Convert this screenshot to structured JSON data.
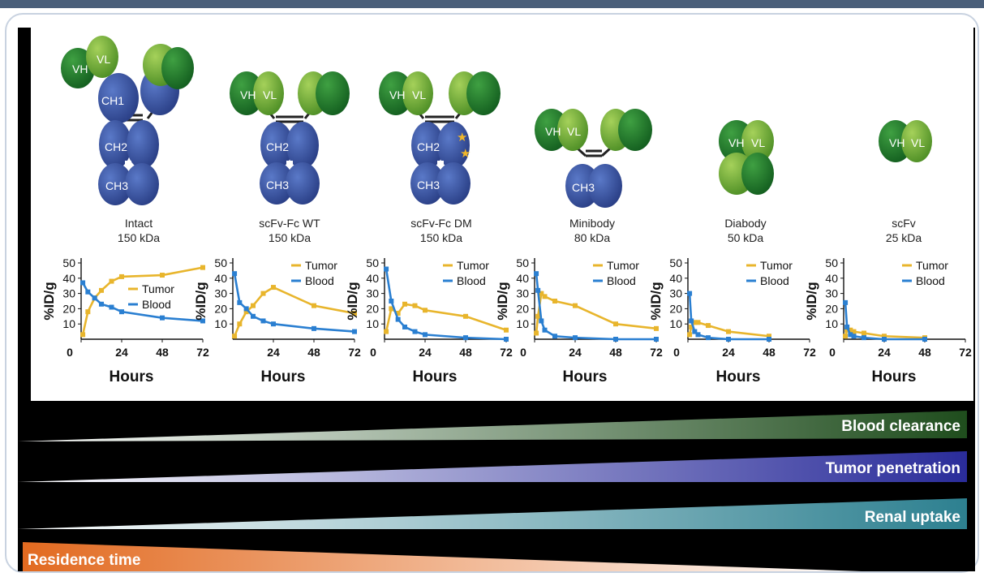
{
  "gradient_bars": [
    {
      "label": "Blood clearance",
      "color": "#1f4d1d"
    },
    {
      "label": "Tumor penetration",
      "color": "#2a2c9a"
    },
    {
      "label": "Renal uptake",
      "color": "#2d8090"
    },
    {
      "label": "Residence time",
      "color": "#e26a20"
    }
  ],
  "panels": [
    {
      "name": "Intact",
      "size": "150 kDa",
      "domains": [
        "VH",
        "VL",
        "CH1",
        "CH2",
        "CH3"
      ],
      "ylabel": "%ID/g",
      "xlabel": "Hours",
      "yticks": [
        "50",
        "40",
        "30",
        "20",
        "10"
      ],
      "xticks": [
        "0",
        "24",
        "48",
        "72"
      ],
      "legend": [
        "Tumor",
        "Blood"
      ],
      "legend_pos": "middle-right"
    },
    {
      "name": "scFv-Fc WT",
      "size": "150 kDa",
      "domains": [
        "VH",
        "VL",
        "CH2",
        "CH3"
      ],
      "ylabel": "%ID/g",
      "xlabel": "Hours",
      "yticks": [
        "50",
        "40",
        "30",
        "20",
        "10"
      ],
      "xticks": [
        "24",
        "48",
        "72"
      ],
      "legend": [
        "Tumor",
        "Blood"
      ],
      "legend_pos": "top-right"
    },
    {
      "name": "scFv-Fc DM",
      "size": "150 kDa",
      "domains": [
        "VH",
        "VL",
        "CH2",
        "CH3"
      ],
      "ylabel": "%ID/g",
      "xlabel": "Hours",
      "yticks": [
        "50",
        "40",
        "30",
        "20",
        "10"
      ],
      "xticks": [
        "0",
        "24",
        "48",
        "72"
      ],
      "legend": [
        "Tumor",
        "Blood"
      ],
      "legend_pos": "top-right"
    },
    {
      "name": "Minibody",
      "size": "80 kDa",
      "domains": [
        "VH",
        "VL",
        "CH3"
      ],
      "ylabel": "%ID/g",
      "xlabel": "Hours",
      "yticks": [
        "50",
        "40",
        "30",
        "20",
        "10"
      ],
      "xticks": [
        "0",
        "24",
        "48",
        "72"
      ],
      "legend": [
        "Tumor",
        "Blood"
      ],
      "legend_pos": "top-right"
    },
    {
      "name": "Diabody",
      "size": "50 kDa",
      "domains": [
        "VH",
        "VL"
      ],
      "ylabel": "%ID/g",
      "xlabel": "Hours",
      "yticks": [
        "50",
        "40",
        "30",
        "20",
        "10"
      ],
      "xticks": [
        "0",
        "24",
        "48",
        "72"
      ],
      "legend": [
        "Tumor",
        "Blood"
      ],
      "legend_pos": "top-right"
    },
    {
      "name": "scFv",
      "size": "25 kDa",
      "domains": [
        "VH",
        "VL"
      ],
      "ylabel": "%ID/g",
      "xlabel": "Hours",
      "yticks": [
        "50",
        "40",
        "30",
        "20",
        "10"
      ],
      "xticks": [
        "0",
        "24",
        "48",
        "72"
      ],
      "legend": [
        "Tumor",
        "Blood"
      ],
      "legend_pos": "top-right"
    }
  ],
  "chart_data": [
    {
      "type": "line",
      "title": "Intact",
      "ylabel": "%ID/g",
      "xlabel": "Hours",
      "ylim": [
        0,
        50
      ],
      "xlim": [
        0,
        72
      ],
      "series": [
        {
          "name": "Tumor",
          "color": "#e8b52c",
          "x": [
            1,
            4,
            8,
            12,
            18,
            24,
            48,
            72
          ],
          "y": [
            3,
            18,
            27,
            32,
            38,
            41,
            42,
            47
          ]
        },
        {
          "name": "Blood",
          "color": "#2a7fd1",
          "x": [
            1,
            4,
            8,
            12,
            18,
            24,
            48,
            72
          ],
          "y": [
            37,
            31,
            27,
            23,
            21,
            18,
            14,
            12
          ]
        }
      ]
    },
    {
      "type": "line",
      "title": "scFv-Fc WT",
      "ylabel": "%ID/g",
      "xlabel": "Hours",
      "ylim": [
        0,
        50
      ],
      "xlim": [
        0,
        72
      ],
      "series": [
        {
          "name": "Tumor",
          "color": "#e8b52c",
          "x": [
            1,
            4,
            8,
            12,
            18,
            24,
            48,
            72
          ],
          "y": [
            2,
            10,
            18,
            22,
            30,
            34,
            22,
            17
          ]
        },
        {
          "name": "Blood",
          "color": "#2a7fd1",
          "x": [
            1,
            4,
            8,
            12,
            18,
            24,
            48,
            72
          ],
          "y": [
            43,
            24,
            20,
            15,
            12,
            10,
            7,
            5
          ]
        }
      ]
    },
    {
      "type": "line",
      "title": "scFv-Fc DM",
      "ylabel": "%ID/g",
      "xlabel": "Hours",
      "ylim": [
        0,
        50
      ],
      "xlim": [
        0,
        72
      ],
      "series": [
        {
          "name": "Tumor",
          "color": "#e8b52c",
          "x": [
            1,
            4,
            8,
            12,
            18,
            24,
            48,
            72
          ],
          "y": [
            5,
            20,
            17,
            23,
            22,
            19,
            15,
            6
          ]
        },
        {
          "name": "Blood",
          "color": "#2a7fd1",
          "x": [
            1,
            4,
            8,
            12,
            18,
            24,
            48,
            72
          ],
          "y": [
            46,
            25,
            13,
            8,
            5,
            3,
            1,
            0
          ]
        }
      ]
    },
    {
      "type": "line",
      "title": "Minibody",
      "ylabel": "%ID/g",
      "xlabel": "Hours",
      "ylim": [
        0,
        50
      ],
      "xlim": [
        0,
        72
      ],
      "series": [
        {
          "name": "Tumor",
          "color": "#e8b52c",
          "x": [
            1,
            2,
            4,
            6,
            12,
            24,
            48,
            72
          ],
          "y": [
            4,
            15,
            30,
            28,
            25,
            22,
            10,
            7
          ]
        },
        {
          "name": "Blood",
          "color": "#2a7fd1",
          "x": [
            1,
            2,
            4,
            6,
            12,
            24,
            48,
            72
          ],
          "y": [
            43,
            32,
            12,
            6,
            2,
            1,
            0,
            0
          ]
        }
      ]
    },
    {
      "type": "line",
      "title": "Diabody",
      "ylabel": "%ID/g",
      "xlabel": "Hours",
      "ylim": [
        0,
        50
      ],
      "xlim": [
        0,
        72
      ],
      "series": [
        {
          "name": "Tumor",
          "color": "#e8b52c",
          "x": [
            1,
            2,
            4,
            6,
            12,
            24,
            48
          ],
          "y": [
            3,
            8,
            11,
            11,
            9,
            5,
            2
          ]
        },
        {
          "name": "Blood",
          "color": "#2a7fd1",
          "x": [
            1,
            2,
            4,
            6,
            12,
            24,
            48
          ],
          "y": [
            30,
            12,
            5,
            3,
            1,
            0,
            0
          ]
        }
      ]
    },
    {
      "type": "line",
      "title": "scFv",
      "ylabel": "%ID/g",
      "xlabel": "Hours",
      "ylim": [
        0,
        50
      ],
      "xlim": [
        0,
        72
      ],
      "series": [
        {
          "name": "Tumor",
          "color": "#e8b52c",
          "x": [
            1,
            2,
            4,
            6,
            12,
            24,
            48
          ],
          "y": [
            2,
            6,
            6,
            5,
            4,
            2,
            1
          ]
        },
        {
          "name": "Blood",
          "color": "#2a7fd1",
          "x": [
            1,
            2,
            4,
            6,
            12,
            24,
            48
          ],
          "y": [
            24,
            8,
            3,
            2,
            1,
            0,
            0
          ]
        }
      ]
    }
  ]
}
